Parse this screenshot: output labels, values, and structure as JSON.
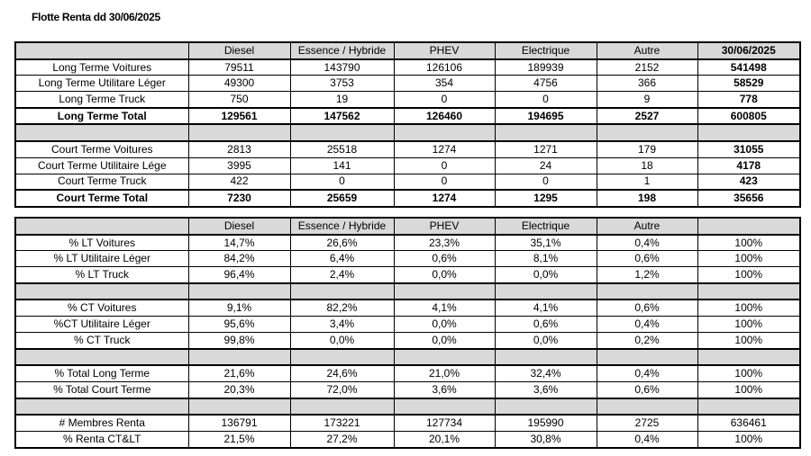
{
  "title": "Flotte Renta dd 30/06/2025",
  "table1": {
    "headers": [
      "",
      "Diesel",
      "Essence / Hybride",
      "PHEV",
      "Electrique",
      "Autre",
      "30/06/2025"
    ],
    "rows": [
      {
        "type": "data",
        "cells": [
          "Long Terme Voitures",
          "79511",
          "143790",
          "126106",
          "189939",
          "2152",
          "541498"
        ]
      },
      {
        "type": "data",
        "cells": [
          "Long Terme Utilitare Léger",
          "49300",
          "3753",
          "354",
          "4756",
          "366",
          "58529"
        ]
      },
      {
        "type": "data",
        "cells": [
          "Long Terme Truck",
          "750",
          "19",
          "0",
          "0",
          "9",
          "778"
        ]
      },
      {
        "type": "total",
        "cells": [
          "Long Terme Total",
          "129561",
          "147562",
          "126460",
          "194695",
          "2527",
          "600805"
        ]
      },
      {
        "type": "gap",
        "cells": [
          "",
          "",
          "",
          "",
          "",
          "",
          ""
        ]
      },
      {
        "type": "data",
        "cells": [
          "Court Terme Voitures",
          "2813",
          "25518",
          "1274",
          "1271",
          "179",
          "31055"
        ]
      },
      {
        "type": "data",
        "cells": [
          "Court Terme Utilitaire Lége",
          "3995",
          "141",
          "0",
          "24",
          "18",
          "4178"
        ]
      },
      {
        "type": "data",
        "cells": [
          "Court Terme Truck",
          "422",
          "0",
          "0",
          "0",
          "1",
          "423"
        ]
      },
      {
        "type": "total",
        "cells": [
          "Court Terme Total",
          "7230",
          "25659",
          "1274",
          "1295",
          "198",
          "35656"
        ]
      }
    ]
  },
  "table2": {
    "headers": [
      "",
      "Diesel",
      "Essence / Hybride",
      "PHEV",
      "Electrique",
      "Autre",
      ""
    ],
    "rows": [
      {
        "type": "data",
        "cells": [
          "% LT Voitures",
          "14,7%",
          "26,6%",
          "23,3%",
          "35,1%",
          "0,4%",
          "100%"
        ]
      },
      {
        "type": "data",
        "cells": [
          "% LT Utilitaire Léger",
          "84,2%",
          "6,4%",
          "0,6%",
          "8,1%",
          "0,6%",
          "100%"
        ]
      },
      {
        "type": "data",
        "cells": [
          "% LT Truck",
          "96,4%",
          "2,4%",
          "0,0%",
          "0,0%",
          "1,2%",
          "100%"
        ]
      },
      {
        "type": "gap",
        "cells": [
          "",
          "",
          "",
          "",
          "",
          "",
          ""
        ]
      },
      {
        "type": "data",
        "cells": [
          "% CT Voitures",
          "9,1%",
          "82,2%",
          "4,1%",
          "4,1%",
          "0,6%",
          "100%"
        ]
      },
      {
        "type": "data",
        "cells": [
          "%CT Utilitaire Léger",
          "95,6%",
          "3,4%",
          "0,0%",
          "0,6%",
          "0,4%",
          "100%"
        ]
      },
      {
        "type": "data",
        "cells": [
          "% CT Truck",
          "99,8%",
          "0,0%",
          "0,0%",
          "0,0%",
          "0,2%",
          "100%"
        ]
      },
      {
        "type": "gap",
        "cells": [
          "",
          "",
          "",
          "",
          "",
          "",
          ""
        ]
      },
      {
        "type": "data",
        "cells": [
          "% Total Long Terme",
          "21,6%",
          "24,6%",
          "21,0%",
          "32,4%",
          "0,4%",
          "100%"
        ]
      },
      {
        "type": "data",
        "cells": [
          "% Total Court Terme",
          "20,3%",
          "72,0%",
          "3,6%",
          "3,6%",
          "0,6%",
          "100%"
        ]
      },
      {
        "type": "gap",
        "cells": [
          "",
          "",
          "",
          "",
          "",
          "",
          ""
        ]
      },
      {
        "type": "data",
        "cells": [
          "# Membres Renta",
          "136791",
          "173221",
          "127734",
          "195990",
          "2725",
          "636461"
        ]
      },
      {
        "type": "data",
        "cells": [
          "% Renta CT&LT",
          "21,5%",
          "27,2%",
          "20,1%",
          "30,8%",
          "0,4%",
          "100%"
        ]
      }
    ]
  }
}
